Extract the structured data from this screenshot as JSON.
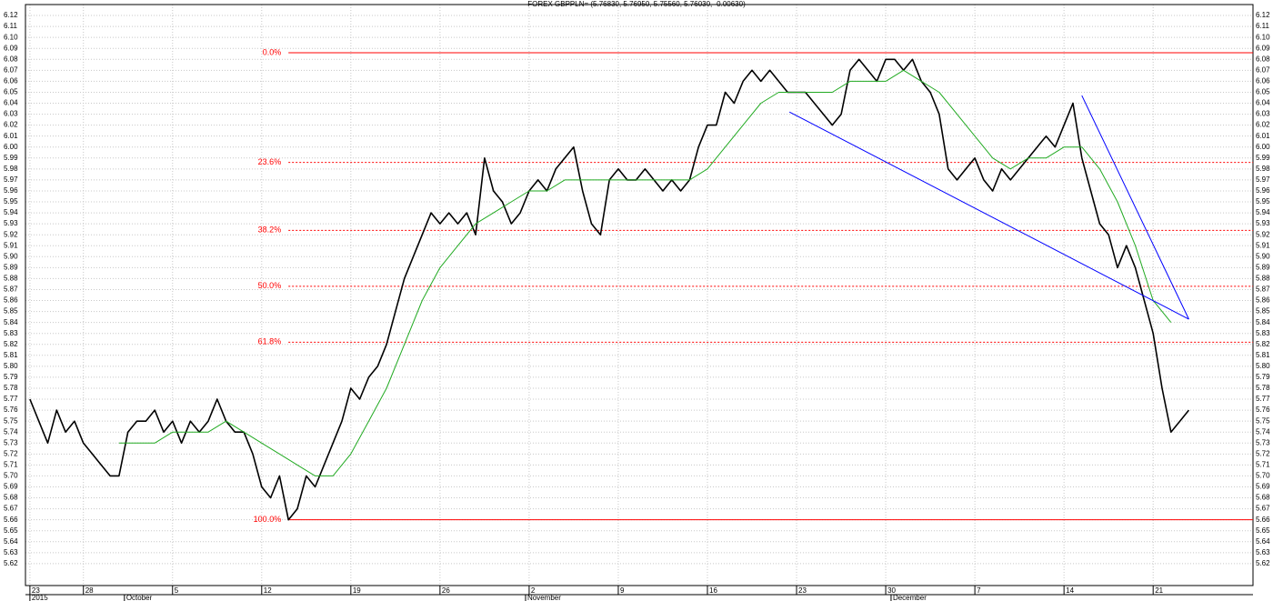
{
  "chart_data": {
    "type": "line",
    "title": "FOREX GBPPLN= (5.76830, 5.76950, 5.75560, 5.76030, -0.00630)",
    "grid": true,
    "xlim": [
      -0.25,
      68.6
    ],
    "ylim": [
      5.6,
      6.13
    ],
    "xticks": [
      {
        "value": 0,
        "label": "23"
      },
      {
        "value": 3,
        "label": "28"
      },
      {
        "value": 8,
        "label": "5"
      },
      {
        "value": 13,
        "label": "12"
      },
      {
        "value": 18,
        "label": "19"
      },
      {
        "value": 23,
        "label": "26"
      },
      {
        "value": 28,
        "label": "2"
      },
      {
        "value": 33,
        "label": "9"
      },
      {
        "value": 38,
        "label": "16"
      },
      {
        "value": 43,
        "label": "23"
      },
      {
        "value": 48,
        "label": "30"
      },
      {
        "value": 53,
        "label": "7"
      },
      {
        "value": 58,
        "label": "14"
      },
      {
        "value": 63,
        "label": "21"
      }
    ],
    "month_ticks": [
      {
        "value": 0,
        "label": "2015"
      },
      {
        "value": 5.3,
        "label": "October"
      },
      {
        "value": 27.8,
        "label": "November"
      },
      {
        "value": 48.3,
        "label": "December"
      }
    ],
    "yticks": [
      5.62,
      5.63,
      5.64,
      5.65,
      5.66,
      5.67,
      5.68,
      5.69,
      {
        "value": 5.7,
        "label": "5.70"
      },
      5.71,
      5.72,
      5.73,
      5.74,
      5.75,
      5.76,
      5.77,
      5.78,
      5.79,
      {
        "value": 5.8,
        "label": "5.80"
      },
      5.81,
      5.82,
      5.83,
      5.84,
      5.85,
      5.86,
      5.87,
      5.88,
      5.89,
      {
        "value": 5.9,
        "label": "5.90"
      },
      5.91,
      5.92,
      5.93,
      5.94,
      5.95,
      5.96,
      5.97,
      5.98,
      5.99,
      {
        "value": 6.0,
        "label": "6.00"
      },
      6.01,
      6.02,
      6.03,
      6.04,
      6.05,
      6.06,
      6.07,
      6.08,
      6.09,
      {
        "value": 6.1,
        "label": "6.10"
      },
      6.11,
      6.12
    ],
    "series": [
      {
        "color": "#000000",
        "x": [
          0,
          0.5,
          1,
          1.5,
          2,
          2.5,
          3,
          3.5,
          4,
          4.5,
          5,
          5.5,
          6,
          6.5,
          7,
          7.5,
          8,
          8.5,
          9,
          9.5,
          10,
          10.5,
          11,
          11.5,
          12,
          12.5,
          13,
          13.5,
          14,
          14.5,
          15,
          15.5,
          16,
          16.5,
          17,
          17.5,
          18,
          18.5,
          19,
          19.5,
          20,
          20.5,
          21,
          21.5,
          22,
          22.5,
          23,
          23.5,
          24,
          24.5,
          25,
          25.5,
          26,
          26.5,
          27,
          27.5,
          28,
          28.5,
          29,
          29.5,
          30,
          30.5,
          31,
          31.5,
          32,
          32.5,
          33,
          33.5,
          34,
          34.5,
          35,
          35.5,
          36,
          36.5,
          37,
          37.5,
          38,
          38.5,
          39,
          39.5,
          40,
          40.5,
          41,
          41.5,
          42,
          42.5,
          43,
          43.5,
          44,
          44.5,
          45,
          45.5,
          46,
          46.5,
          47,
          47.5,
          48,
          48.5,
          49,
          49.5,
          50,
          50.5,
          51,
          51.5,
          52,
          52.5,
          53,
          53.5,
          54,
          54.5,
          55,
          55.5,
          56,
          56.5,
          57,
          57.5,
          58,
          58.5,
          59,
          59.5,
          60,
          60.5,
          61,
          61.5,
          62,
          62.5,
          63,
          63.5,
          64,
          64.5,
          65
        ],
        "values": [
          5.77,
          5.75,
          5.73,
          5.76,
          5.74,
          5.75,
          5.73,
          5.72,
          5.71,
          5.7,
          5.7,
          5.74,
          5.75,
          5.75,
          5.76,
          5.74,
          5.75,
          5.73,
          5.75,
          5.74,
          5.75,
          5.77,
          5.75,
          5.74,
          5.74,
          5.72,
          5.69,
          5.68,
          5.7,
          5.66,
          5.67,
          5.7,
          5.69,
          5.71,
          5.73,
          5.75,
          5.78,
          5.77,
          5.79,
          5.8,
          5.82,
          5.85,
          5.88,
          5.9,
          5.92,
          5.94,
          5.93,
          5.94,
          5.93,
          5.94,
          5.92,
          5.99,
          5.96,
          5.95,
          5.93,
          5.94,
          5.96,
          5.97,
          5.96,
          5.98,
          5.99,
          6.0,
          5.96,
          5.93,
          5.92,
          5.97,
          5.98,
          5.97,
          5.97,
          5.98,
          5.97,
          5.96,
          5.97,
          5.96,
          5.97,
          6.0,
          6.02,
          6.02,
          6.05,
          6.04,
          6.06,
          6.07,
          6.06,
          6.07,
          6.06,
          6.05,
          6.05,
          6.05,
          6.04,
          6.03,
          6.02,
          6.03,
          6.07,
          6.08,
          6.07,
          6.06,
          6.08,
          6.08,
          6.07,
          6.08,
          6.06,
          6.05,
          6.03,
          5.98,
          5.97,
          5.98,
          5.99,
          5.97,
          5.96,
          5.98,
          5.97,
          5.98,
          5.99,
          6.0,
          6.01,
          6.0,
          6.02,
          6.04,
          5.99,
          5.96,
          5.93,
          5.92,
          5.89,
          5.91,
          5.89,
          5.86,
          5.83,
          5.78,
          5.74,
          5.75,
          5.76
        ]
      },
      {
        "color": "#22aa22",
        "x": [
          5,
          6,
          7,
          8,
          9,
          10,
          11,
          12,
          13,
          14,
          15,
          16,
          17,
          18,
          19,
          20,
          21,
          22,
          23,
          24,
          25,
          26,
          27,
          28,
          29,
          30,
          31,
          32,
          33,
          34,
          35,
          36,
          37,
          38,
          39,
          40,
          41,
          42,
          43,
          44,
          45,
          46,
          47,
          48,
          49,
          50,
          51,
          52,
          53,
          54,
          55,
          56,
          57,
          58,
          59,
          60,
          61,
          62,
          63,
          64
        ],
        "values": [
          5.73,
          5.73,
          5.73,
          5.74,
          5.74,
          5.74,
          5.75,
          5.74,
          5.73,
          5.72,
          5.71,
          5.7,
          5.7,
          5.72,
          5.75,
          5.78,
          5.82,
          5.86,
          5.89,
          5.91,
          5.93,
          5.94,
          5.95,
          5.96,
          5.96,
          5.97,
          5.97,
          5.97,
          5.97,
          5.97,
          5.97,
          5.97,
          5.97,
          5.98,
          6.0,
          6.02,
          6.04,
          6.05,
          6.05,
          6.05,
          6.05,
          6.06,
          6.06,
          6.06,
          6.07,
          6.06,
          6.05,
          6.03,
          6.01,
          5.99,
          5.98,
          5.99,
          5.99,
          6.0,
          6.0,
          5.98,
          5.95,
          5.91,
          5.86,
          5.84
        ]
      }
    ],
    "fibonacci": {
      "color": "#ff0000",
      "start": 14.5,
      "levels": [
        {
          "label": "0.0%",
          "value": 6.086,
          "solid": true
        },
        {
          "label": "23.6%",
          "value": 5.986,
          "solid": false
        },
        {
          "label": "38.2%",
          "value": 5.924,
          "solid": false
        },
        {
          "label": "50.0%",
          "value": 5.873,
          "solid": false
        },
        {
          "label": "61.8%",
          "value": 5.822,
          "solid": false
        },
        {
          "label": "100.0%",
          "value": 5.66,
          "solid": true
        }
      ]
    },
    "trendlines": {
      "color": "#0000ff",
      "lines": [
        {
          "x": [
            42.6,
            65
          ],
          "values": [
            6.032,
            5.843
          ]
        },
        {
          "x": [
            59,
            65
          ],
          "values": [
            6.047,
            5.843
          ]
        }
      ]
    }
  }
}
